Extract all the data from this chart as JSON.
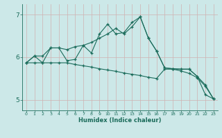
{
  "xlabel": "Humidex (Indice chaleur)",
  "xlim": [
    -0.5,
    23.5
  ],
  "ylim": [
    4.75,
    7.25
  ],
  "yticks": [
    5,
    6,
    7
  ],
  "xticks": [
    0,
    1,
    2,
    3,
    4,
    5,
    6,
    7,
    8,
    9,
    10,
    11,
    12,
    13,
    14,
    15,
    16,
    17,
    18,
    19,
    20,
    21,
    22,
    23
  ],
  "bg_color": "#cce8e8",
  "line_color": "#1a6b5a",
  "grid_color": "#b0d8d8",
  "lines": [
    [
      5.87,
      6.03,
      6.03,
      6.22,
      6.22,
      6.18,
      6.25,
      6.28,
      6.35,
      6.45,
      6.55,
      6.68,
      6.55,
      6.72,
      6.95,
      6.45,
      6.15,
      5.75,
      5.73,
      5.72,
      5.72,
      5.55,
      5.12,
      5.02
    ],
    [
      5.87,
      6.03,
      5.87,
      6.22,
      6.22,
      5.92,
      5.95,
      6.28,
      6.1,
      6.55,
      6.78,
      6.55,
      6.58,
      6.82,
      6.95,
      6.45,
      6.15,
      5.75,
      5.73,
      5.72,
      5.72,
      5.55,
      5.35,
      5.02
    ],
    [
      5.87,
      5.87,
      5.87,
      5.87,
      5.87,
      5.87,
      5.83,
      5.8,
      5.77,
      5.73,
      5.7,
      5.67,
      5.63,
      5.6,
      5.57,
      5.53,
      5.5,
      5.72,
      5.72,
      5.68,
      5.62,
      5.52,
      5.32,
      5.02
    ]
  ]
}
